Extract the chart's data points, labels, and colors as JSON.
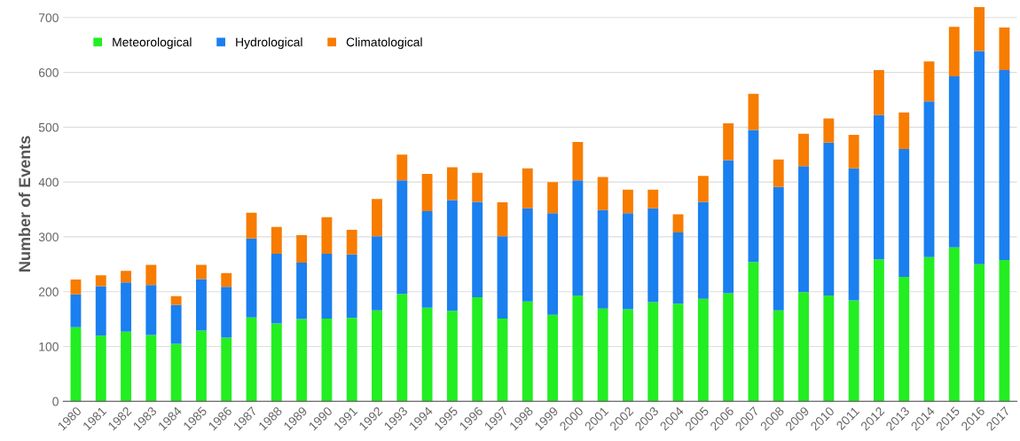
{
  "chart_data": {
    "type": "bar",
    "stacked": true,
    "ylabel": "Number of Events",
    "categories": [
      "1980",
      "1981",
      "1982",
      "1983",
      "1984",
      "1985",
      "1986",
      "1987",
      "1988",
      "1989",
      "1990",
      "1991",
      "1992",
      "1993",
      "1994",
      "1995",
      "1996",
      "1997",
      "1998",
      "1999",
      "2000",
      "2001",
      "2002",
      "2003",
      "2004",
      "2005",
      "2006",
      "2007",
      "2008",
      "2009",
      "2010",
      "2011",
      "2012",
      "2013",
      "2014",
      "2015",
      "2016",
      "2017"
    ],
    "series": [
      {
        "name": "Meteorological",
        "color": "#22ee22",
        "values": [
          135,
          120,
          127,
          121,
          105,
          129,
          116,
          153,
          142,
          150,
          151,
          152,
          166,
          196,
          171,
          165,
          190,
          151,
          182,
          158,
          193,
          169,
          168,
          181,
          178,
          187,
          197,
          254,
          166,
          199,
          193,
          184,
          259,
          227,
          263,
          281,
          250,
          258
        ]
      },
      {
        "name": "Hydrological",
        "color": "#1a7fef",
        "values": [
          60,
          90,
          90,
          91,
          71,
          94,
          93,
          144,
          127,
          103,
          118,
          116,
          135,
          207,
          176,
          202,
          174,
          150,
          170,
          185,
          210,
          180,
          175,
          171,
          130,
          177,
          243,
          241,
          225,
          230,
          279,
          241,
          263,
          233,
          284,
          312,
          389,
          346
        ]
      },
      {
        "name": "Climatological",
        "color": "#f77c00",
        "values": [
          27,
          20,
          21,
          37,
          16,
          26,
          25,
          47,
          49,
          50,
          67,
          45,
          68,
          47,
          68,
          60,
          53,
          62,
          73,
          57,
          70,
          60,
          43,
          34,
          33,
          47,
          67,
          66,
          50,
          59,
          44,
          61,
          82,
          67,
          73,
          90,
          80,
          78
        ]
      }
    ],
    "ylim": [
      0,
      720
    ],
    "yticks": [
      0,
      100,
      200,
      300,
      400,
      500,
      600,
      700
    ],
    "grid": "y",
    "legend": "top left"
  }
}
